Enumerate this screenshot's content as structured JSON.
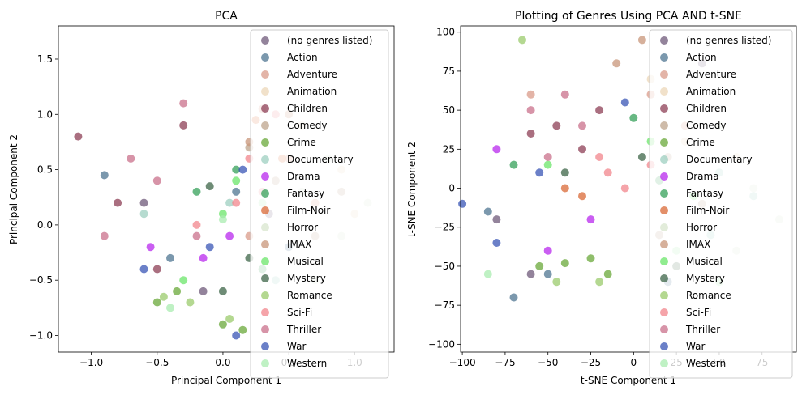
{
  "chart_data": [
    {
      "type": "scatter",
      "title": "PCA",
      "xlabel": "Principal Component 1",
      "ylabel": "Principal Component 2",
      "xlim": [
        -1.25,
        1.3
      ],
      "ylim": [
        -1.15,
        1.8
      ],
      "xticks": [
        -1.0,
        -0.5,
        0.0,
        0.5,
        1.0
      ],
      "xtick_labels": [
        "−1.0",
        "−0.5",
        "0.0",
        "0.5",
        "1.0"
      ],
      "yticks": [
        -1.0,
        -0.5,
        0.0,
        0.5,
        1.0,
        1.5
      ],
      "ytick_labels": [
        "−1.0",
        "−0.5",
        "0.0",
        "0.5",
        "1.0",
        "1.5"
      ],
      "grid": false,
      "legend_position": "top-right",
      "series": [
        {
          "name": "(no genres listed)",
          "color": "#6f5a7a",
          "points": [
            [
              -0.15,
              -0.6
            ],
            [
              0.35,
              0.1
            ],
            [
              -0.6,
              0.2
            ]
          ]
        },
        {
          "name": "Action",
          "color": "#4f7592",
          "points": [
            [
              -0.9,
              0.45
            ],
            [
              -0.4,
              -0.3
            ],
            [
              0.1,
              0.3
            ],
            [
              0.5,
              -0.2
            ]
          ]
        },
        {
          "name": "Adventure",
          "color": "#d99b8a",
          "points": [
            [
              0.3,
              1.05
            ],
            [
              0.5,
              0.6
            ],
            [
              0.7,
              0.2
            ],
            [
              0.2,
              -0.1
            ]
          ]
        },
        {
          "name": "Animation",
          "color": "#ecd7b8",
          "points": [
            [
              0.6,
              0.9
            ],
            [
              0.9,
              0.5
            ],
            [
              1.0,
              0.1
            ]
          ]
        },
        {
          "name": "Children",
          "color": "#8e3f55",
          "points": [
            [
              -1.1,
              0.8
            ],
            [
              -0.8,
              0.2
            ],
            [
              -0.5,
              -0.4
            ],
            [
              -0.3,
              0.9
            ]
          ]
        },
        {
          "name": "Comedy",
          "color": "#bda48c",
          "points": [
            [
              0.4,
              0.4
            ],
            [
              0.7,
              -0.1
            ],
            [
              0.2,
              0.7
            ],
            [
              0.9,
              0.3
            ]
          ]
        },
        {
          "name": "Crime",
          "color": "#6aa839",
          "points": [
            [
              -0.5,
              -0.7
            ],
            [
              -0.35,
              -0.6
            ],
            [
              0.0,
              -0.9
            ],
            [
              0.15,
              -0.95
            ]
          ]
        },
        {
          "name": "Documentary",
          "color": "#9ecfc0",
          "points": [
            [
              0.05,
              0.2
            ],
            [
              0.4,
              -0.5
            ],
            [
              -0.6,
              0.1
            ]
          ]
        },
        {
          "name": "Drama",
          "color": "#b828ee",
          "points": [
            [
              -0.15,
              -0.3
            ],
            [
              0.05,
              -0.1
            ],
            [
              -0.55,
              -0.2
            ]
          ]
        },
        {
          "name": "Fantasy",
          "color": "#35a05a",
          "points": [
            [
              -0.2,
              0.3
            ],
            [
              0.3,
              -0.4
            ],
            [
              0.1,
              0.5
            ]
          ]
        },
        {
          "name": "Film-Noir",
          "color": "#d96a37",
          "points": [
            [
              0.25,
              0.95
            ],
            [
              0.45,
              0.6
            ]
          ]
        },
        {
          "name": "Horror",
          "color": "#d8e6cd",
          "points": [
            [
              0.6,
              0.3
            ],
            [
              0.9,
              -0.1
            ],
            [
              1.1,
              0.2
            ],
            [
              0.8,
              0.6
            ],
            [
              0.7,
              -0.5
            ]
          ]
        },
        {
          "name": "IMAX",
          "color": "#c8967a",
          "points": [
            [
              0.2,
              0.75
            ],
            [
              0.5,
              1.0
            ]
          ]
        },
        {
          "name": "Musical",
          "color": "#6be66a",
          "points": [
            [
              0.0,
              0.1
            ],
            [
              0.1,
              0.4
            ],
            [
              -0.3,
              -0.5
            ]
          ]
        },
        {
          "name": "Mystery",
          "color": "#3d6648",
          "points": [
            [
              0.0,
              -0.6
            ],
            [
              -0.1,
              0.35
            ],
            [
              0.2,
              -0.3
            ]
          ]
        },
        {
          "name": "Romance",
          "color": "#9bcb6c",
          "points": [
            [
              -0.45,
              -0.65
            ],
            [
              0.05,
              -0.85
            ],
            [
              -0.25,
              -0.7
            ]
          ]
        },
        {
          "name": "Sci-Fi",
          "color": "#f2858c",
          "points": [
            [
              0.2,
              0.6
            ],
            [
              0.4,
              1.0
            ],
            [
              0.1,
              0.2
            ],
            [
              -0.2,
              0.0
            ],
            [
              0.3,
              0.3
            ]
          ]
        },
        {
          "name": "Thriller",
          "color": "#c9708b",
          "points": [
            [
              -0.7,
              0.6
            ],
            [
              -0.3,
              1.1
            ],
            [
              -0.9,
              -0.1
            ],
            [
              -0.5,
              0.4
            ],
            [
              -0.2,
              -0.1
            ]
          ]
        },
        {
          "name": "War",
          "color": "#3a56b6",
          "points": [
            [
              -0.1,
              -0.2
            ],
            [
              0.1,
              -1.0
            ],
            [
              -0.6,
              -0.4
            ],
            [
              0.15,
              0.5
            ]
          ]
        },
        {
          "name": "Western",
          "color": "#a9ecb0",
          "points": [
            [
              -0.4,
              -0.75
            ],
            [
              0.3,
              0.2
            ],
            [
              0.0,
              0.05
            ]
          ]
        }
      ]
    },
    {
      "type": "scatter",
      "title": "Plotting of Genres Using PCA AND t-SNE",
      "xlabel": "t-SNE Component 1",
      "ylabel": "t-SNE Component 2",
      "xlim": [
        -101,
        95
      ],
      "ylim": [
        -105,
        104
      ],
      "xticks": [
        -100,
        -75,
        -50,
        -25,
        0,
        25,
        50,
        75
      ],
      "xtick_labels": [
        "−100",
        "−75",
        "−50",
        "−25",
        "0",
        "25",
        "50",
        "75"
      ],
      "yticks": [
        -100,
        -75,
        -50,
        -25,
        0,
        25,
        50,
        75,
        100
      ],
      "ytick_labels": [
        "−100",
        "−75",
        "−50",
        "−25",
        "0",
        "25",
        "50",
        "75",
        "100"
      ],
      "grid": false,
      "legend_position": "top-right",
      "series": [
        {
          "name": "(no genres listed)",
          "color": "#6f5a7a",
          "points": [
            [
              -80,
              -20
            ],
            [
              -60,
              -55
            ],
            [
              40,
              80
            ]
          ]
        },
        {
          "name": "Action",
          "color": "#4f7592",
          "points": [
            [
              -85,
              -15
            ],
            [
              -70,
              -70
            ],
            [
              -50,
              -55
            ],
            [
              20,
              -60
            ]
          ]
        },
        {
          "name": "Adventure",
          "color": "#d99b8a",
          "points": [
            [
              -60,
              60
            ],
            [
              10,
              60
            ],
            [
              30,
              40
            ]
          ]
        },
        {
          "name": "Animation",
          "color": "#ecd7b8",
          "points": [
            [
              10,
              70
            ],
            [
              30,
              30
            ],
            [
              60,
              20
            ]
          ]
        },
        {
          "name": "Children",
          "color": "#8e3f55",
          "points": [
            [
              -45,
              40
            ],
            [
              -30,
              25
            ],
            [
              -60,
              35
            ],
            [
              -20,
              50
            ]
          ]
        },
        {
          "name": "Comedy",
          "color": "#bda48c",
          "points": [
            [
              20,
              20
            ],
            [
              40,
              -10
            ],
            [
              15,
              -30
            ]
          ]
        },
        {
          "name": "Crime",
          "color": "#6aa839",
          "points": [
            [
              -55,
              -50
            ],
            [
              -40,
              -48
            ],
            [
              -25,
              -45
            ],
            [
              -15,
              -55
            ]
          ]
        },
        {
          "name": "Documentary",
          "color": "#9ecfc0",
          "points": [
            [
              50,
              10
            ],
            [
              70,
              -5
            ],
            [
              45,
              -30
            ]
          ]
        },
        {
          "name": "Drama",
          "color": "#b828ee",
          "points": [
            [
              -80,
              25
            ],
            [
              -25,
              -20
            ],
            [
              -50,
              -40
            ]
          ]
        },
        {
          "name": "Fantasy",
          "color": "#35a05a",
          "points": [
            [
              -70,
              15
            ],
            [
              0,
              45
            ],
            [
              15,
              5
            ]
          ]
        },
        {
          "name": "Film-Noir",
          "color": "#d96a37",
          "points": [
            [
              -40,
              0
            ],
            [
              -30,
              -5
            ]
          ]
        },
        {
          "name": "Horror",
          "color": "#d8e6cd",
          "points": [
            [
              50,
              40
            ],
            [
              70,
              0
            ],
            [
              85,
              -20
            ],
            [
              60,
              -40
            ]
          ]
        },
        {
          "name": "IMAX",
          "color": "#c8967a",
          "points": [
            [
              5,
              95
            ],
            [
              -10,
              80
            ]
          ]
        },
        {
          "name": "Musical",
          "color": "#6be66a",
          "points": [
            [
              -50,
              15
            ],
            [
              10,
              30
            ],
            [
              35,
              -5
            ]
          ]
        },
        {
          "name": "Mystery",
          "color": "#3d6648",
          "points": [
            [
              -40,
              10
            ],
            [
              5,
              20
            ],
            [
              25,
              -50
            ]
          ]
        },
        {
          "name": "Romance",
          "color": "#9bcb6c",
          "points": [
            [
              -65,
              95
            ],
            [
              -45,
              -60
            ],
            [
              -20,
              -60
            ]
          ]
        },
        {
          "name": "Sci-Fi",
          "color": "#f2858c",
          "points": [
            [
              -15,
              10
            ],
            [
              -5,
              0
            ],
            [
              10,
              15
            ],
            [
              -20,
              20
            ]
          ]
        },
        {
          "name": "Thriller",
          "color": "#c9708b",
          "points": [
            [
              -60,
              50
            ],
            [
              -40,
              60
            ],
            [
              -30,
              40
            ],
            [
              -50,
              20
            ]
          ]
        },
        {
          "name": "War",
          "color": "#3a56b6",
          "points": [
            [
              -100,
              -10
            ],
            [
              -80,
              -35
            ],
            [
              -5,
              55
            ],
            [
              -55,
              10
            ]
          ]
        },
        {
          "name": "Western",
          "color": "#a9ecb0",
          "points": [
            [
              -85,
              -55
            ],
            [
              25,
              -40
            ],
            [
              50,
              -60
            ]
          ]
        }
      ]
    }
  ]
}
